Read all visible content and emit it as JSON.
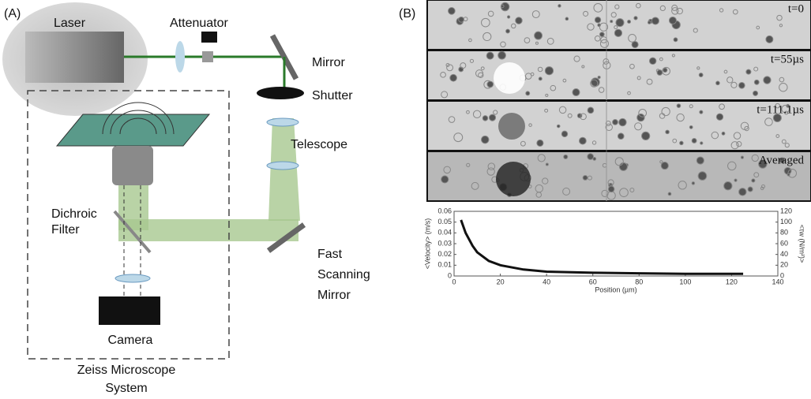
{
  "diagram": {
    "panel_a": {
      "label": "(A)",
      "laser": "Laser",
      "attenuator": "Attenuator",
      "mirror": "Mirror",
      "shutter": "Shutter",
      "telescope": "Telescope",
      "dichroic_filter": [
        "Dichroic",
        "Filter"
      ],
      "fast_scanning_mirror": [
        "Fast",
        "Scanning",
        "Mirror"
      ],
      "camera": "Camera",
      "microscope": [
        "Zeiss Microscope",
        "System"
      ]
    },
    "panel_b": {
      "label": "(B)",
      "frames": [
        "t=0",
        "t=55µs",
        "t=111.1µs",
        "Averaged"
      ]
    }
  },
  "chart_data": {
    "type": "line",
    "xlabel": "Position (µm)",
    "ylabel": "<Velocity> (m/s)",
    "y2label": "<τw (N/m²)>",
    "x": [
      3,
      5,
      8,
      10,
      15,
      20,
      30,
      40,
      60,
      80,
      100,
      125
    ],
    "values": [
      0.052,
      0.04,
      0.028,
      0.022,
      0.014,
      0.01,
      0.006,
      0.004,
      0.003,
      0.0025,
      0.002,
      0.002
    ],
    "color": "#111",
    "xlim": [
      0,
      140
    ],
    "xticks": [
      0,
      20,
      40,
      60,
      80,
      100,
      120,
      140
    ],
    "ylim": [
      0,
      0.06
    ],
    "yticks": [
      0,
      0.01,
      0.02,
      0.03,
      0.04,
      0.05,
      0.06
    ],
    "y2lim": [
      0,
      120
    ],
    "y2ticks": [
      0,
      20,
      40,
      60,
      80,
      100,
      120
    ]
  }
}
